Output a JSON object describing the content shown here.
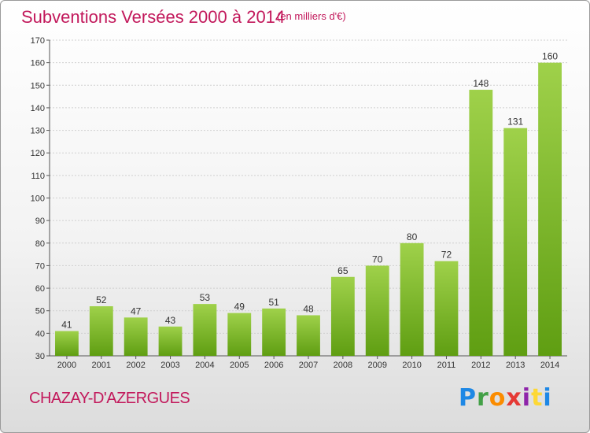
{
  "header": {
    "title": "Subventions Versées 2000 à 2014",
    "subtitle": "(en milliers d'€)"
  },
  "footer": {
    "commune": "CHAZAY-D'AZERGUES",
    "logo": "Proxiti"
  },
  "colors": {
    "title": "#c2185b",
    "bar_top": "#9fd14a",
    "bar_bottom": "#5f9e12",
    "grid": "#d0d0d0"
  },
  "chart_data": {
    "type": "bar",
    "title": "Subventions Versées 2000 à 2014",
    "subtitle": "(en milliers d'€)",
    "categories": [
      "2000",
      "2001",
      "2002",
      "2003",
      "2004",
      "2005",
      "2006",
      "2007",
      "2008",
      "2009",
      "2010",
      "2011",
      "2012",
      "2013",
      "2014"
    ],
    "values": [
      41,
      52,
      47,
      43,
      53,
      49,
      51,
      48,
      65,
      70,
      80,
      72,
      148,
      131,
      160
    ],
    "ylim": [
      30,
      170
    ],
    "yticks": [
      30,
      40,
      50,
      60,
      70,
      80,
      90,
      100,
      110,
      120,
      130,
      140,
      150,
      160,
      170
    ],
    "grid": true,
    "data_labels": true
  }
}
